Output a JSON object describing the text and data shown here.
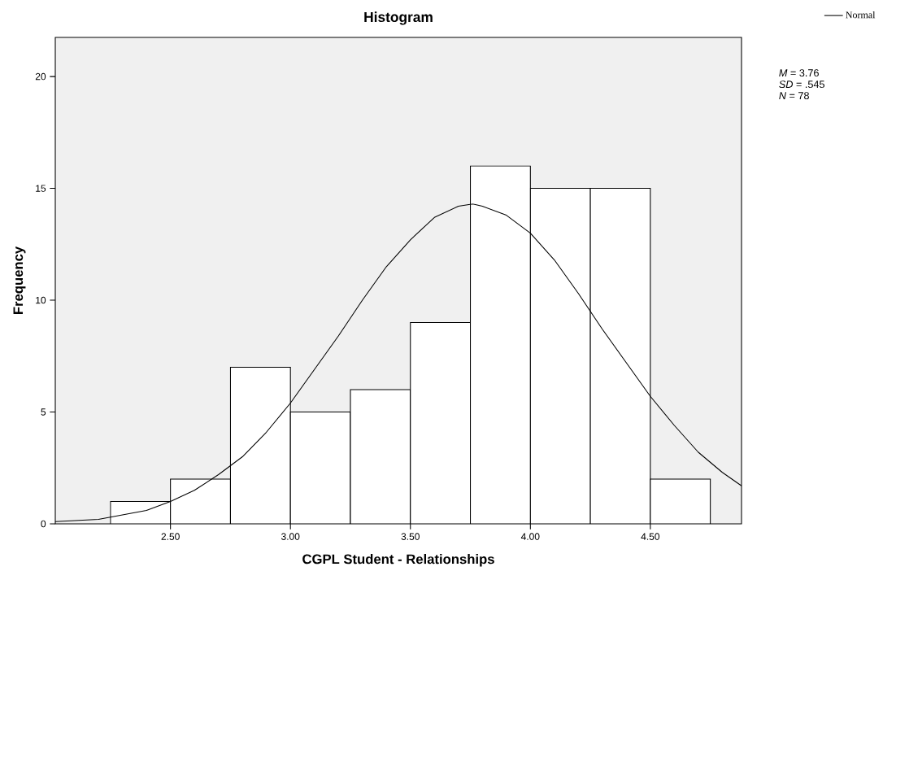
{
  "chart_data": {
    "type": "histogram",
    "title": "Histogram",
    "xlabel": "CGPL Student - Relationships",
    "ylabel": "Frequency",
    "bins": [
      2.25,
      2.5,
      2.75,
      3.0,
      3.25,
      3.5,
      3.75,
      4.0,
      4.25,
      4.5,
      4.75
    ],
    "values": [
      1,
      2,
      7,
      5,
      6,
      9,
      16,
      15,
      15,
      2
    ],
    "color": "#ffffff",
    "series": [
      {
        "type": "line",
        "name": "Normal",
        "color": "#000000",
        "x": [
          2.02,
          2.2,
          2.4,
          2.5,
          2.6,
          2.7,
          2.8,
          2.9,
          3.0,
          3.1,
          3.2,
          3.3,
          3.4,
          3.5,
          3.6,
          3.7,
          3.76,
          3.8,
          3.9,
          4.0,
          4.1,
          4.2,
          4.3,
          4.4,
          4.5,
          4.6,
          4.7,
          4.8,
          4.88
        ],
        "values": [
          0.1,
          0.2,
          0.6,
          1.0,
          1.5,
          2.2,
          3.0,
          4.1,
          5.4,
          6.9,
          8.4,
          10.0,
          11.5,
          12.7,
          13.7,
          14.2,
          14.3,
          14.2,
          13.8,
          13.0,
          11.8,
          10.3,
          8.7,
          7.2,
          5.7,
          4.4,
          3.2,
          2.3,
          1.7
        ]
      }
    ],
    "xlim": [
      2.02,
      4.88
    ],
    "ylim": [
      0,
      21.75
    ],
    "xticks": [
      {
        "value": 2.5,
        "label": "2.50"
      },
      {
        "value": 3.0,
        "label": "3.00"
      },
      {
        "value": 3.5,
        "label": "3.50"
      },
      {
        "value": 4.0,
        "label": "4.00"
      },
      {
        "value": 4.5,
        "label": "4.50"
      }
    ],
    "yticks": [
      0,
      5,
      10,
      15,
      20
    ],
    "legend": "top right",
    "annotations": [
      "*M* = 3.76",
      "*SD* = .545",
      "*N* = 78"
    ]
  }
}
